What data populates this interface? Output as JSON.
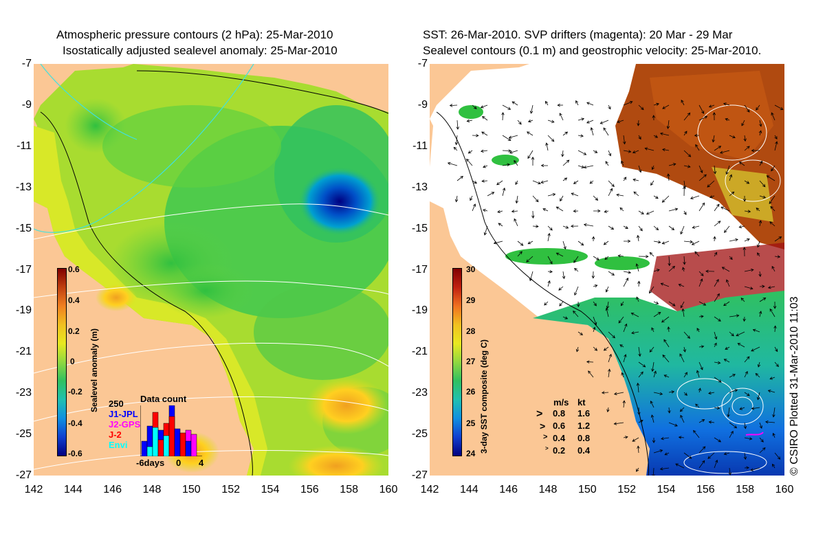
{
  "left": {
    "title_line1": "Atmospheric pressure contours (2 hPa): 25-Mar-2010",
    "title_line2": "Isostatically adjusted sealevel anomaly: 25-Mar-2010",
    "colorbar": {
      "title": "Sealevel anomaly (m)",
      "ticks": [
        "0.6",
        "0.4",
        "0.2",
        "0",
        "-0.2",
        "-0.4",
        "-0.6"
      ]
    },
    "data_count": {
      "title": "Data count",
      "ymax_label": "250",
      "legend": [
        {
          "label": "J1-JPL",
          "color": "#0000ff"
        },
        {
          "label": "J2-GPS",
          "color": "#ff00ff"
        },
        {
          "label": "J-2",
          "color": "#ff0000"
        },
        {
          "label": "Envi",
          "color": "#00ffff"
        }
      ],
      "x_labels": [
        "-6days",
        "0",
        "4"
      ]
    }
  },
  "right": {
    "title_line1": "SST: 26-Mar-2010. SVP drifters (magenta): 20 Mar - 29 Mar",
    "title_line2": "Sealevel contours (0.1 m) and geostrophic velocity: 25-Mar-2010.",
    "colorbar": {
      "title": "3-day SST composite (deg C)",
      "ticks": [
        "30",
        "29",
        "28",
        "27",
        "26",
        "25",
        "24"
      ]
    },
    "speed_legend": {
      "header_ms": "m/s",
      "header_kt": "kt",
      "rows": [
        {
          "ms": "0.8",
          "kt": "1.6"
        },
        {
          "ms": "0.6",
          "kt": "1.2"
        },
        {
          "ms": "0.4",
          "kt": "0.8"
        },
        {
          "ms": "0.2",
          "kt": "0.4"
        }
      ]
    }
  },
  "axes": {
    "lat_ticks": [
      "-7",
      "-9",
      "-11",
      "-13",
      "-15",
      "-17",
      "-19",
      "-21",
      "-23",
      "-25",
      "-27"
    ],
    "lon_ticks": [
      "142",
      "144",
      "146",
      "148",
      "150",
      "152",
      "154",
      "156",
      "158",
      "160"
    ]
  },
  "credit": "© CSIRO Plotted 31-Mar-2010 11:03",
  "colors": {
    "land": "#fbc795",
    "cloud": "#ffffff"
  }
}
